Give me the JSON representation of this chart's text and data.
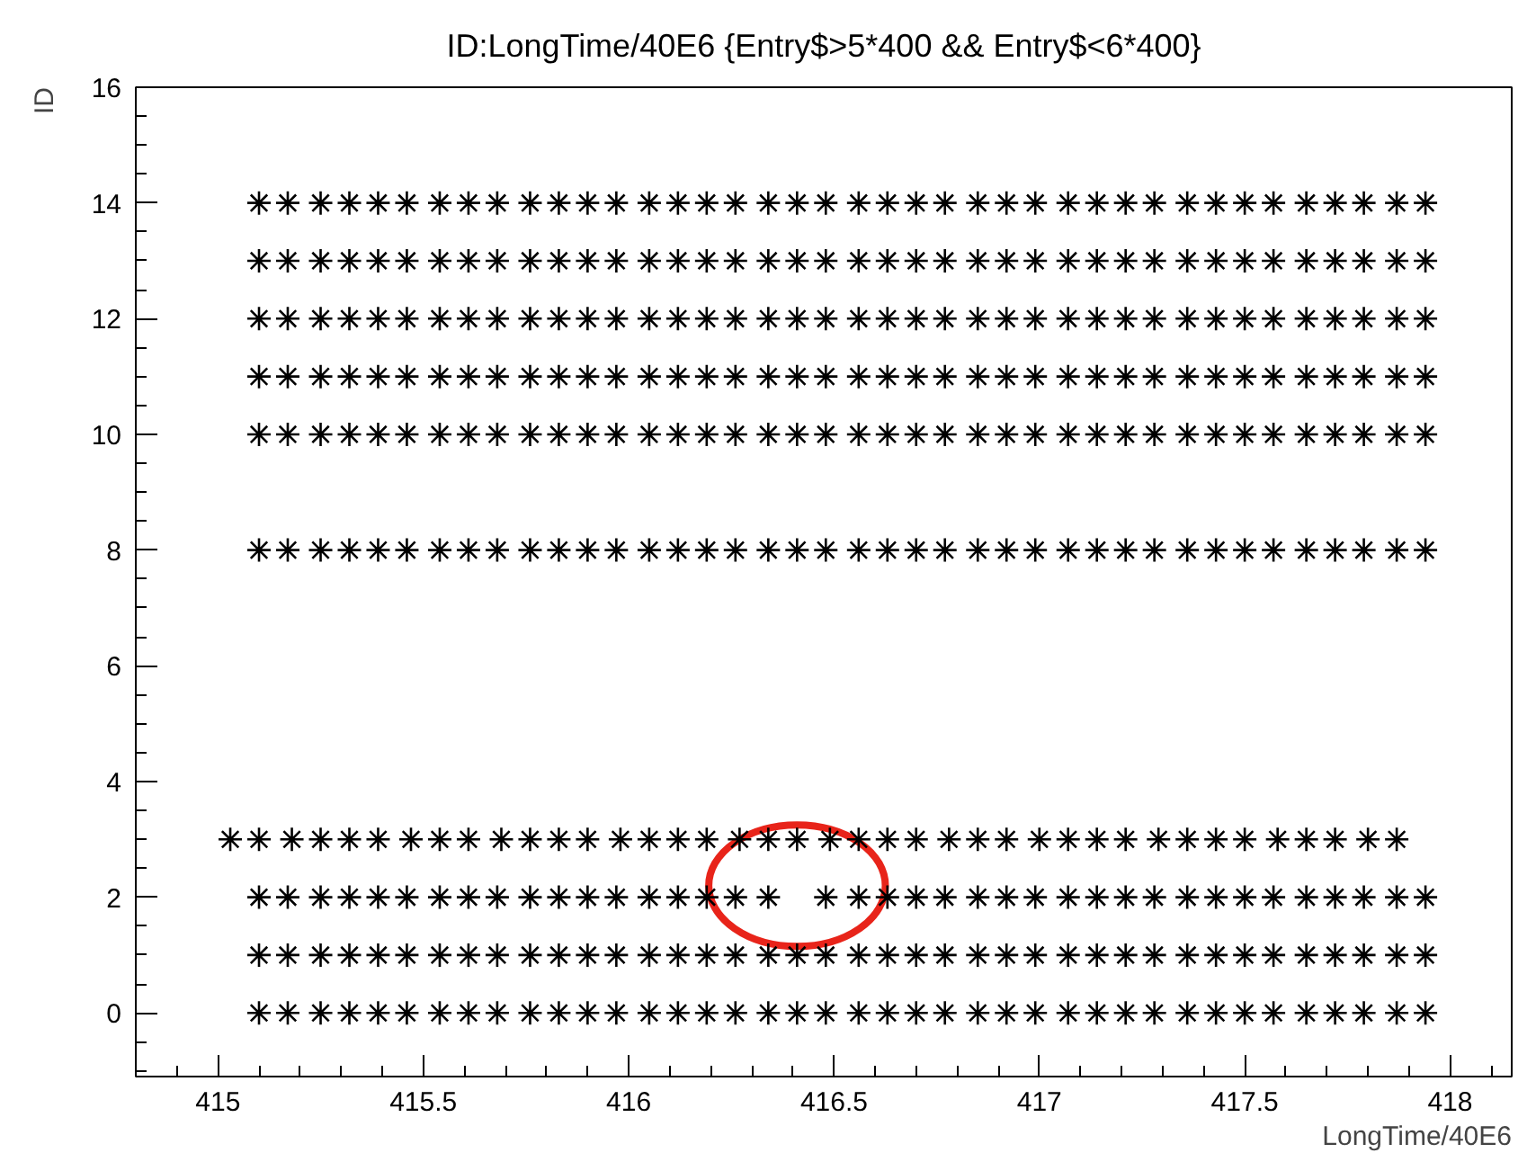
{
  "chart_data": {
    "type": "scatter",
    "title": "ID:LongTime/40E6 {Entry$>5*400 && Entry$<6*400}",
    "xlabel": "LongTime/40E6",
    "ylabel": "ID",
    "xlim": [
      414.8,
      418.15
    ],
    "ylim": [
      -1.1,
      16
    ],
    "xticks": [
      415,
      415.5,
      416,
      416.5,
      417,
      417.5,
      418
    ],
    "yticks": [
      0,
      2,
      4,
      6,
      8,
      10,
      12,
      14,
      16
    ],
    "grid": false,
    "marker": "cross",
    "series": [
      {
        "color": "#000000",
        "x": [
          415.1,
          415.17,
          415.25,
          415.32,
          415.39,
          415.46,
          415.54,
          415.61,
          415.68,
          415.76,
          415.83,
          415.9,
          415.97,
          416.05,
          416.12,
          416.19,
          416.26,
          416.34,
          416.41,
          416.48,
          416.56,
          416.63,
          416.7,
          416.77,
          416.85,
          416.92,
          416.99,
          417.07,
          417.14,
          417.21,
          417.28,
          417.36,
          417.43,
          417.5,
          417.57,
          417.65,
          417.72,
          417.79,
          417.87,
          417.94
        ],
        "values": [
          0,
          0,
          0,
          0,
          0,
          0,
          0,
          0,
          0,
          0,
          0,
          0,
          0,
          0,
          0,
          0,
          0,
          0,
          0,
          0,
          0,
          0,
          0,
          0,
          0,
          0,
          0,
          0,
          0,
          0,
          0,
          0,
          0,
          0,
          0,
          0,
          0,
          0,
          0,
          0
        ]
      },
      {
        "color": "#000000",
        "x": [
          415.1,
          415.17,
          415.25,
          415.32,
          415.39,
          415.46,
          415.54,
          415.61,
          415.68,
          415.76,
          415.83,
          415.9,
          415.97,
          416.05,
          416.12,
          416.19,
          416.26,
          416.34,
          416.41,
          416.48,
          416.56,
          416.63,
          416.7,
          416.77,
          416.85,
          416.92,
          416.99,
          417.07,
          417.14,
          417.21,
          417.28,
          417.36,
          417.43,
          417.5,
          417.57,
          417.65,
          417.72,
          417.79,
          417.87,
          417.94
        ],
        "values": [
          1,
          1,
          1,
          1,
          1,
          1,
          1,
          1,
          1,
          1,
          1,
          1,
          1,
          1,
          1,
          1,
          1,
          1,
          1,
          1,
          1,
          1,
          1,
          1,
          1,
          1,
          1,
          1,
          1,
          1,
          1,
          1,
          1,
          1,
          1,
          1,
          1,
          1,
          1,
          1
        ]
      },
      {
        "color": "#000000",
        "x": [
          415.1,
          415.17,
          415.25,
          415.32,
          415.39,
          415.46,
          415.54,
          415.61,
          415.68,
          415.76,
          415.83,
          415.9,
          415.97,
          416.05,
          416.12,
          416.19,
          416.26,
          416.34,
          416.48,
          416.56,
          416.63,
          416.7,
          416.77,
          416.85,
          416.92,
          416.99,
          417.07,
          417.14,
          417.21,
          417.28,
          417.36,
          417.43,
          417.5,
          417.57,
          417.65,
          417.72,
          417.79,
          417.87,
          417.94
        ],
        "values": [
          2,
          2,
          2,
          2,
          2,
          2,
          2,
          2,
          2,
          2,
          2,
          2,
          2,
          2,
          2,
          2,
          2,
          2,
          2,
          2,
          2,
          2,
          2,
          2,
          2,
          2,
          2,
          2,
          2,
          2,
          2,
          2,
          2,
          2,
          2,
          2,
          2,
          2,
          2
        ]
      },
      {
        "color": "#000000",
        "x": [
          415.03,
          415.1,
          415.18,
          415.25,
          415.32,
          415.39,
          415.47,
          415.54,
          415.61,
          415.69,
          415.76,
          415.83,
          415.9,
          415.98,
          416.05,
          416.12,
          416.19,
          416.27,
          416.34,
          416.41,
          416.49,
          416.56,
          416.63,
          416.7,
          416.78,
          416.85,
          416.92,
          417.0,
          417.07,
          417.14,
          417.21,
          417.29,
          417.36,
          417.43,
          417.5,
          417.58,
          417.65,
          417.72,
          417.8,
          417.87
        ],
        "values": [
          3,
          3,
          3,
          3,
          3,
          3,
          3,
          3,
          3,
          3,
          3,
          3,
          3,
          3,
          3,
          3,
          3,
          3,
          3,
          3,
          3,
          3,
          3,
          3,
          3,
          3,
          3,
          3,
          3,
          3,
          3,
          3,
          3,
          3,
          3,
          3,
          3,
          3,
          3,
          3
        ]
      },
      {
        "color": "#000000",
        "x": [
          415.1,
          415.17,
          415.25,
          415.32,
          415.39,
          415.46,
          415.54,
          415.61,
          415.68,
          415.76,
          415.83,
          415.9,
          415.97,
          416.05,
          416.12,
          416.19,
          416.26,
          416.34,
          416.41,
          416.48,
          416.56,
          416.63,
          416.7,
          416.77,
          416.85,
          416.92,
          416.99,
          417.07,
          417.14,
          417.21,
          417.28,
          417.36,
          417.43,
          417.5,
          417.57,
          417.65,
          417.72,
          417.79,
          417.87,
          417.94
        ],
        "values": [
          8,
          8,
          8,
          8,
          8,
          8,
          8,
          8,
          8,
          8,
          8,
          8,
          8,
          8,
          8,
          8,
          8,
          8,
          8,
          8,
          8,
          8,
          8,
          8,
          8,
          8,
          8,
          8,
          8,
          8,
          8,
          8,
          8,
          8,
          8,
          8,
          8,
          8,
          8,
          8
        ]
      },
      {
        "color": "#000000",
        "x": [
          415.1,
          415.17,
          415.25,
          415.32,
          415.39,
          415.46,
          415.54,
          415.61,
          415.68,
          415.76,
          415.83,
          415.9,
          415.97,
          416.05,
          416.12,
          416.19,
          416.26,
          416.34,
          416.41,
          416.48,
          416.56,
          416.63,
          416.7,
          416.77,
          416.85,
          416.92,
          416.99,
          417.07,
          417.14,
          417.21,
          417.28,
          417.36,
          417.43,
          417.5,
          417.57,
          417.65,
          417.72,
          417.79,
          417.87,
          417.94
        ],
        "values": [
          10,
          10,
          10,
          10,
          10,
          10,
          10,
          10,
          10,
          10,
          10,
          10,
          10,
          10,
          10,
          10,
          10,
          10,
          10,
          10,
          10,
          10,
          10,
          10,
          10,
          10,
          10,
          10,
          10,
          10,
          10,
          10,
          10,
          10,
          10,
          10,
          10,
          10,
          10,
          10
        ]
      },
      {
        "color": "#000000",
        "x": [
          415.1,
          415.17,
          415.25,
          415.32,
          415.39,
          415.46,
          415.54,
          415.61,
          415.68,
          415.76,
          415.83,
          415.9,
          415.97,
          416.05,
          416.12,
          416.19,
          416.26,
          416.34,
          416.41,
          416.48,
          416.56,
          416.63,
          416.7,
          416.77,
          416.85,
          416.92,
          416.99,
          417.07,
          417.14,
          417.21,
          417.28,
          417.36,
          417.43,
          417.5,
          417.57,
          417.65,
          417.72,
          417.79,
          417.87,
          417.94
        ],
        "values": [
          11,
          11,
          11,
          11,
          11,
          11,
          11,
          11,
          11,
          11,
          11,
          11,
          11,
          11,
          11,
          11,
          11,
          11,
          11,
          11,
          11,
          11,
          11,
          11,
          11,
          11,
          11,
          11,
          11,
          11,
          11,
          11,
          11,
          11,
          11,
          11,
          11,
          11,
          11,
          11
        ]
      },
      {
        "color": "#000000",
        "x": [
          415.1,
          415.17,
          415.25,
          415.32,
          415.39,
          415.46,
          415.54,
          415.61,
          415.68,
          415.76,
          415.83,
          415.9,
          415.97,
          416.05,
          416.12,
          416.19,
          416.26,
          416.34,
          416.41,
          416.48,
          416.56,
          416.63,
          416.7,
          416.77,
          416.85,
          416.92,
          416.99,
          417.07,
          417.14,
          417.21,
          417.28,
          417.36,
          417.43,
          417.5,
          417.57,
          417.65,
          417.72,
          417.79,
          417.87,
          417.94
        ],
        "values": [
          12,
          12,
          12,
          12,
          12,
          12,
          12,
          12,
          12,
          12,
          12,
          12,
          12,
          12,
          12,
          12,
          12,
          12,
          12,
          12,
          12,
          12,
          12,
          12,
          12,
          12,
          12,
          12,
          12,
          12,
          12,
          12,
          12,
          12,
          12,
          12,
          12,
          12,
          12,
          12
        ]
      },
      {
        "color": "#000000",
        "x": [
          415.1,
          415.17,
          415.25,
          415.32,
          415.39,
          415.46,
          415.54,
          415.61,
          415.68,
          415.76,
          415.83,
          415.9,
          415.97,
          416.05,
          416.12,
          416.19,
          416.26,
          416.34,
          416.41,
          416.48,
          416.56,
          416.63,
          416.7,
          416.77,
          416.85,
          416.92,
          416.99,
          417.07,
          417.14,
          417.21,
          417.28,
          417.36,
          417.43,
          417.5,
          417.57,
          417.65,
          417.72,
          417.79,
          417.87,
          417.94
        ],
        "values": [
          13,
          13,
          13,
          13,
          13,
          13,
          13,
          13,
          13,
          13,
          13,
          13,
          13,
          13,
          13,
          13,
          13,
          13,
          13,
          13,
          13,
          13,
          13,
          13,
          13,
          13,
          13,
          13,
          13,
          13,
          13,
          13,
          13,
          13,
          13,
          13,
          13,
          13,
          13,
          13
        ]
      },
      {
        "color": "#000000",
        "x": [
          415.1,
          415.17,
          415.25,
          415.32,
          415.39,
          415.46,
          415.54,
          415.61,
          415.68,
          415.76,
          415.83,
          415.9,
          415.97,
          416.05,
          416.12,
          416.19,
          416.26,
          416.34,
          416.41,
          416.48,
          416.56,
          416.63,
          416.7,
          416.77,
          416.85,
          416.92,
          416.99,
          417.07,
          417.14,
          417.21,
          417.28,
          417.36,
          417.43,
          417.5,
          417.57,
          417.65,
          417.72,
          417.79,
          417.87,
          417.94
        ],
        "values": [
          14,
          14,
          14,
          14,
          14,
          14,
          14,
          14,
          14,
          14,
          14,
          14,
          14,
          14,
          14,
          14,
          14,
          14,
          14,
          14,
          14,
          14,
          14,
          14,
          14,
          14,
          14,
          14,
          14,
          14,
          14,
          14,
          14,
          14,
          14,
          14,
          14,
          14,
          14,
          14
        ]
      }
    ]
  }
}
